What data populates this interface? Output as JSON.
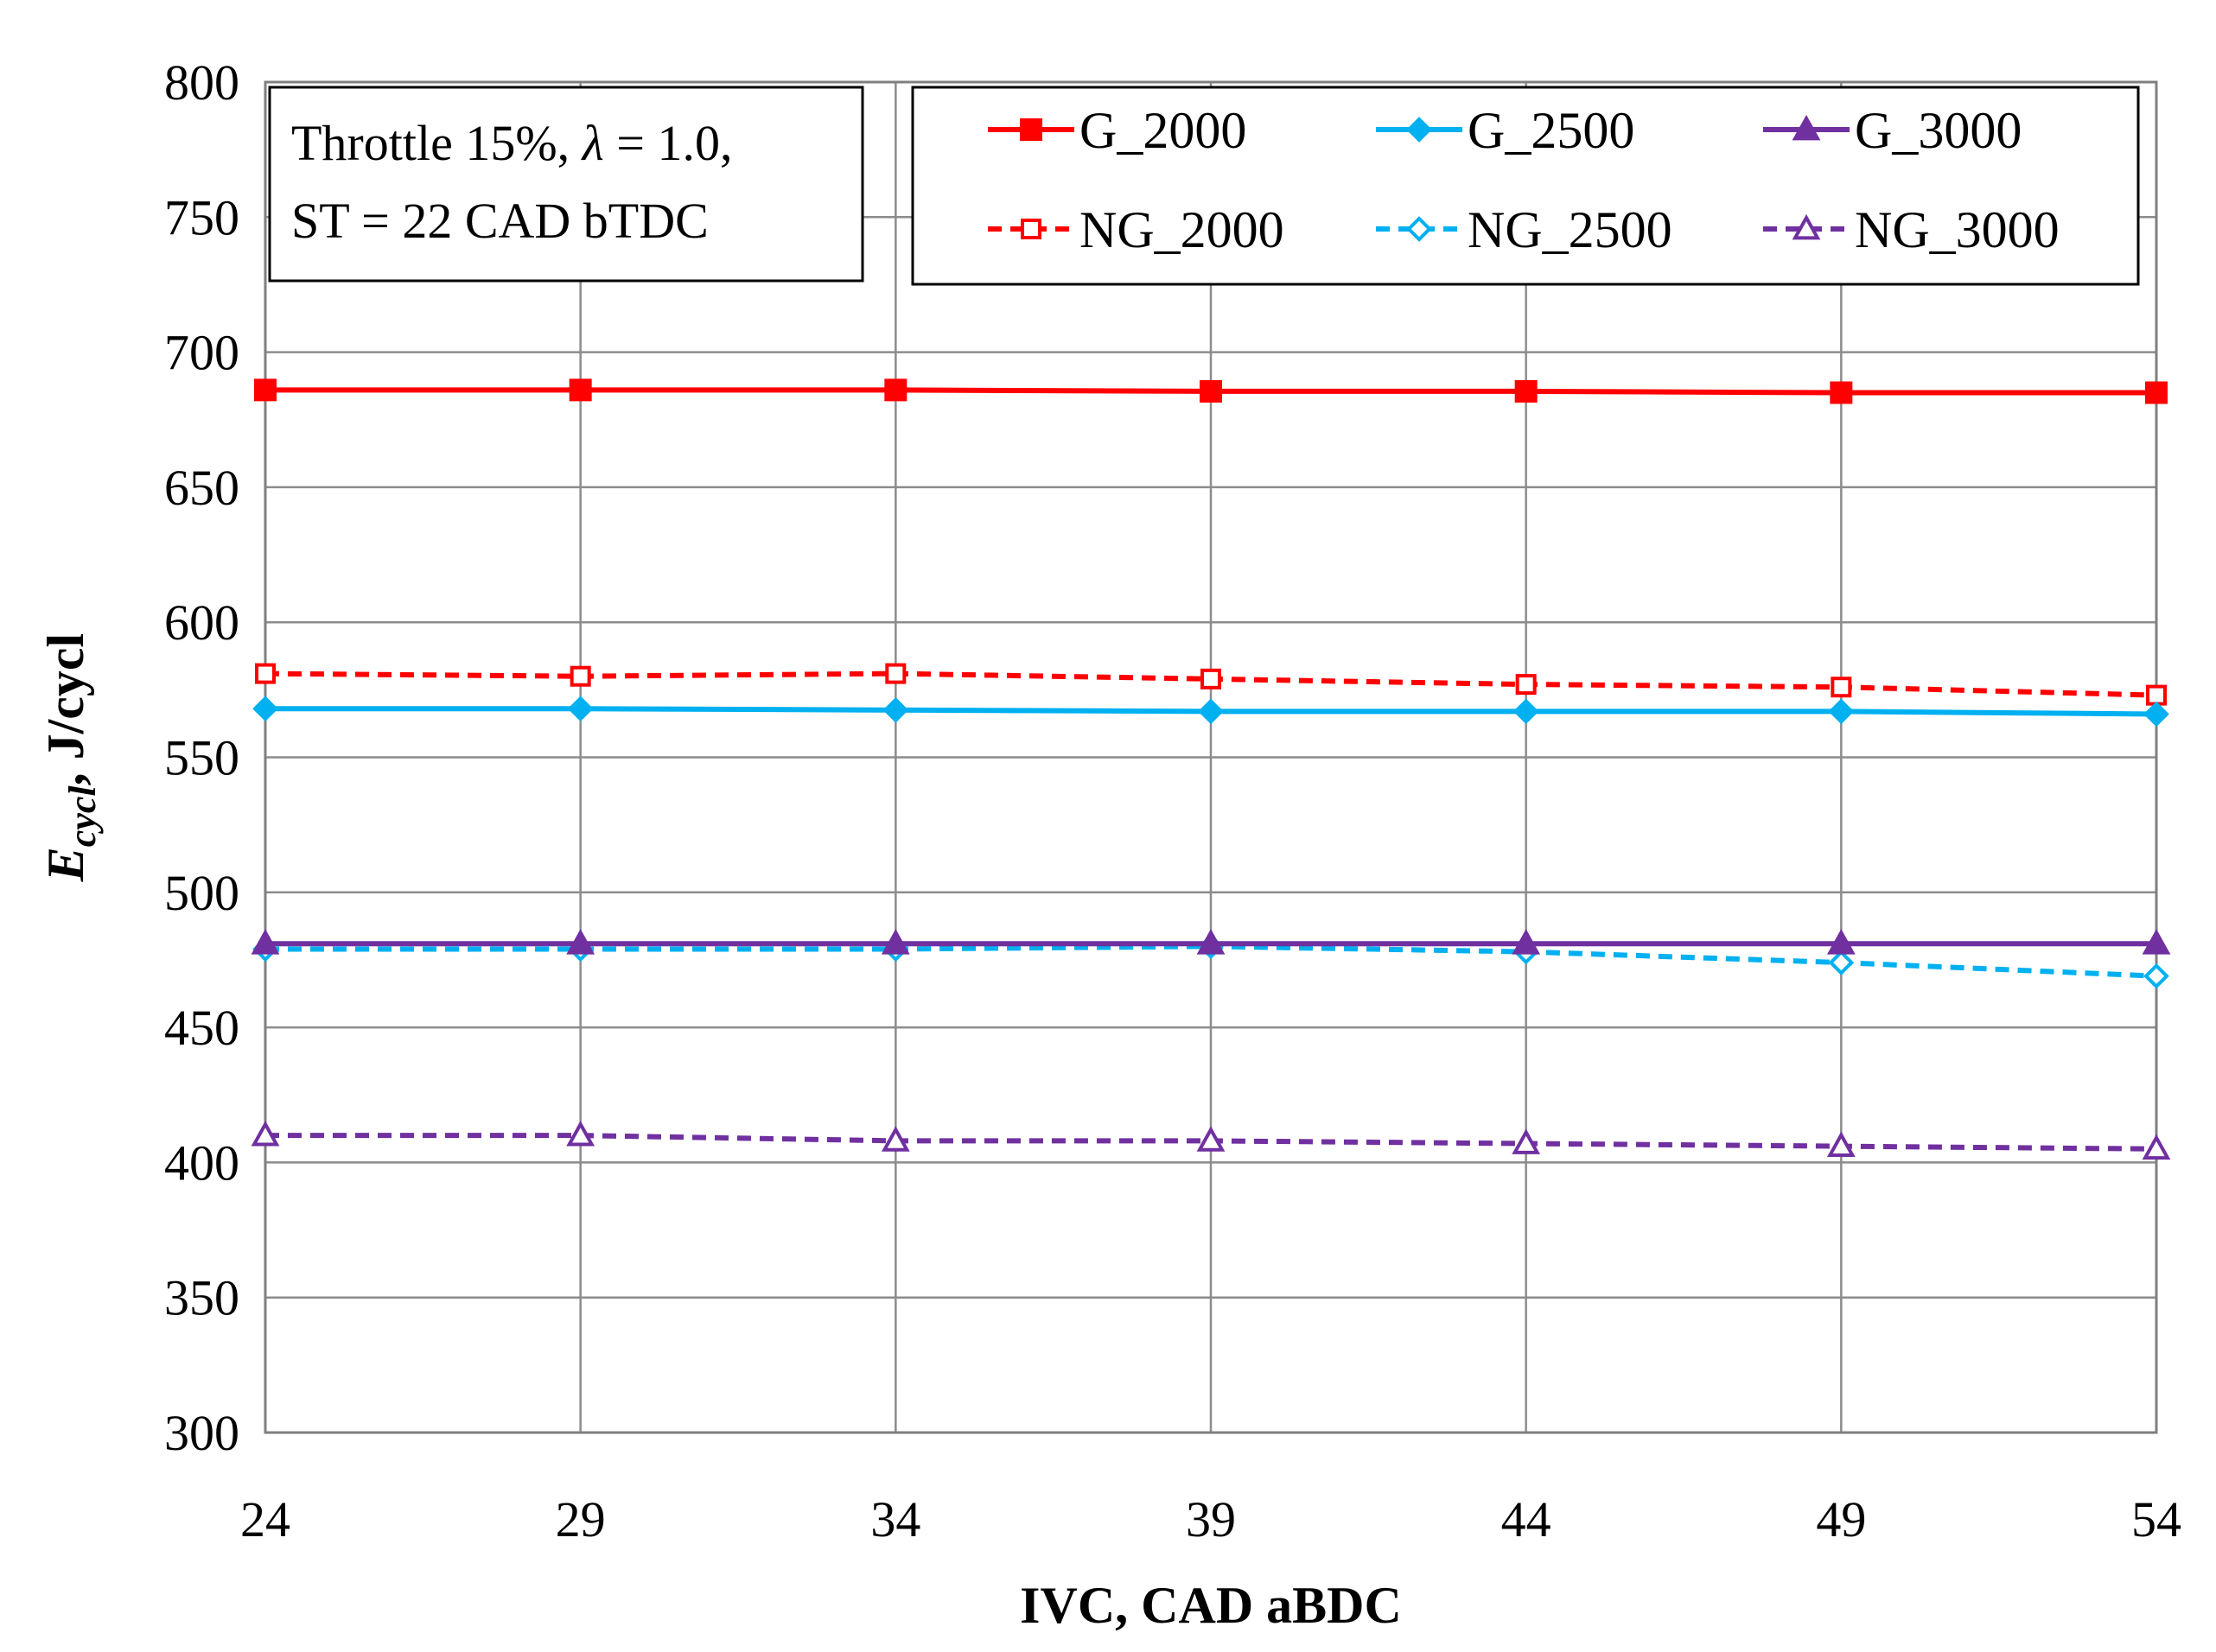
{
  "chart_data": {
    "type": "line",
    "xlabel": "IVC, CAD aBDC",
    "ylabel": {
      "main": "E",
      "sub": "cycl",
      "unit": ", J/cycl"
    },
    "x": [
      24,
      29,
      34,
      39,
      44,
      49,
      54
    ],
    "xlim": [
      24,
      54
    ],
    "ylim": [
      300,
      800
    ],
    "yticks": [
      300,
      350,
      400,
      450,
      500,
      550,
      600,
      650,
      700,
      750,
      800
    ],
    "grid": true,
    "legend_position": "top-right",
    "annotation": {
      "line1_prefix": "Throttle 15%, ",
      "line1_symbol": "λ",
      "line1_suffix": " = 1.0,",
      "line2": "ST = 22 CAD bTDC"
    },
    "series": [
      {
        "name": "G_2000",
        "color": "#ff0000",
        "dash": "solid",
        "marker": "square",
        "filled": true,
        "values": [
          686,
          686,
          686,
          685.5,
          685.5,
          685,
          685
        ]
      },
      {
        "name": "G_2500",
        "color": "#00b0f0",
        "dash": "solid",
        "marker": "diamond",
        "filled": true,
        "values": [
          568,
          568,
          567.5,
          567,
          567,
          567,
          566
        ]
      },
      {
        "name": "G_3000",
        "color": "#7030a0",
        "dash": "solid",
        "marker": "triangle",
        "filled": true,
        "values": [
          481,
          481,
          481,
          481,
          481,
          481,
          481
        ]
      },
      {
        "name": "NG_2000",
        "color": "#ff0000",
        "dash": "dashed",
        "marker": "square",
        "filled": false,
        "values": [
          581,
          580,
          581,
          579,
          577,
          576,
          573
        ]
      },
      {
        "name": "NG_2500",
        "color": "#00b0f0",
        "dash": "dashed",
        "marker": "diamond",
        "filled": false,
        "values": [
          479,
          479,
          479,
          480,
          478,
          474,
          469
        ]
      },
      {
        "name": "NG_3000",
        "color": "#7030a0",
        "dash": "dashed",
        "marker": "triangle",
        "filled": false,
        "values": [
          410,
          410,
          408,
          408,
          407,
          406,
          405
        ]
      }
    ]
  }
}
